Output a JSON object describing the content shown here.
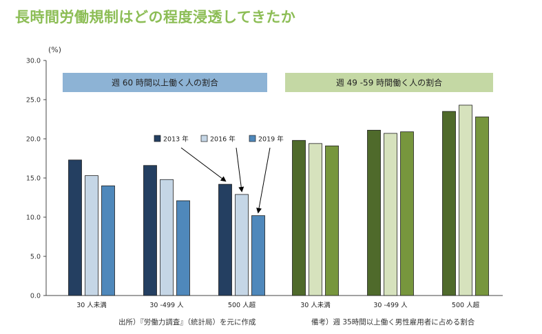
{
  "page": {
    "title": "長時間労働規制はどの程度浸透してきたか"
  },
  "chart_data": {
    "type": "bar",
    "y_unit_label": "(%)",
    "ylim": [
      0,
      30
    ],
    "yticks": [
      "0.0",
      "5.0",
      "10.0",
      "15.0",
      "20.0",
      "25.0",
      "30.0"
    ],
    "legend": [
      "2013 年",
      "2016 年",
      "2019 年"
    ],
    "groups": [
      {
        "label": "週 60 時間以上働く人の割合",
        "color": "#8db3d5",
        "series_colors": [
          "#243f61",
          "#c5d6e6",
          "#4f88bb"
        ],
        "categories": [
          "30 人未満",
          "30 -499 人",
          "500 人超"
        ],
        "values": [
          [
            17.3,
            15.3,
            14.0
          ],
          [
            16.6,
            14.8,
            12.1
          ],
          [
            14.2,
            12.9,
            10.2
          ]
        ]
      },
      {
        "label": "週 49 -59 時間働く人の割合",
        "color": "#c4d8a4",
        "series_colors": [
          "#4f6a2b",
          "#d6e2bd",
          "#77963d"
        ],
        "categories": [
          "30 人未満",
          "30 -499 人",
          "500 人超"
        ],
        "values": [
          [
            19.8,
            19.4,
            19.1
          ],
          [
            21.1,
            20.7,
            20.9
          ],
          [
            23.5,
            24.3,
            22.8
          ]
        ]
      }
    ],
    "grid": false,
    "legend_position": "center"
  },
  "footer": {
    "source": "出所）『労働力調査』（統計局）を元に作成",
    "note": "備考）週 35時間以上働く男性雇用者に占める割合"
  }
}
